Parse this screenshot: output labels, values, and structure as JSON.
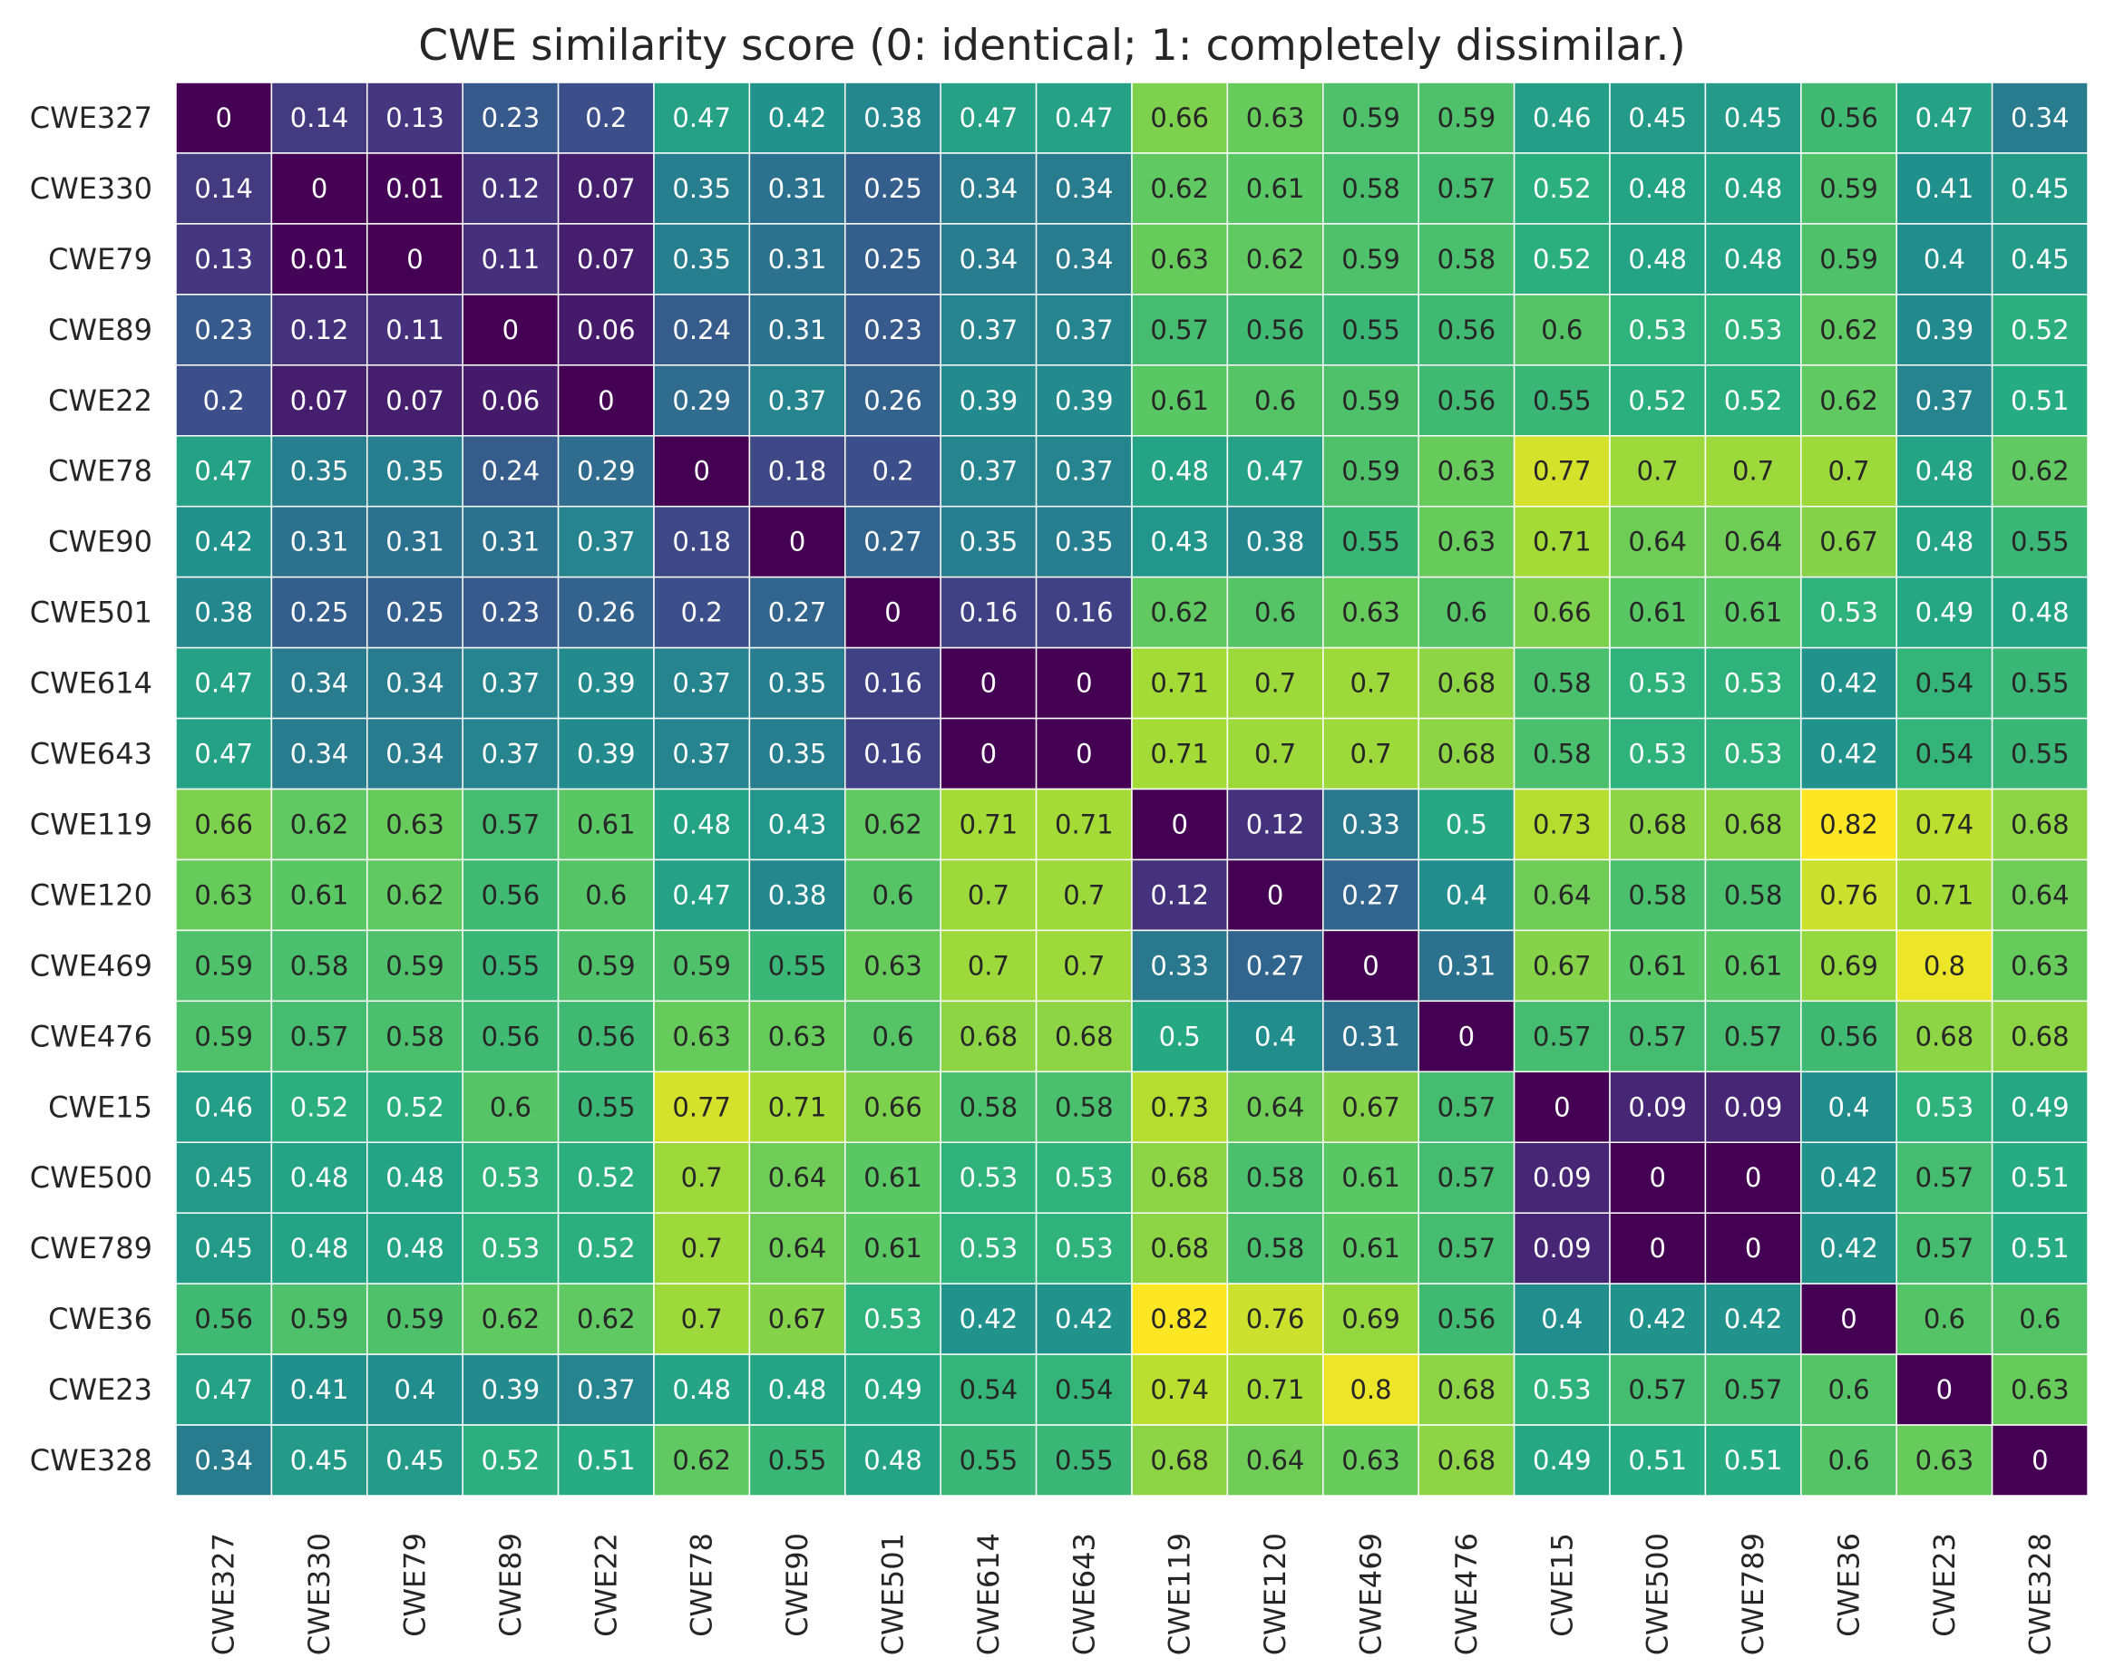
{
  "chart_data": {
    "type": "heatmap",
    "title": "CWE similarity score (0: identical; 1: completely dissimilar.)",
    "xlabel": "",
    "ylabel": "",
    "colormap": "viridis",
    "value_range": [
      0,
      0.82
    ],
    "row_labels": [
      "CWE327",
      "CWE330",
      "CWE79",
      "CWE89",
      "CWE22",
      "CWE78",
      "CWE90",
      "CWE501",
      "CWE614",
      "CWE643",
      "CWE119",
      "CWE120",
      "CWE469",
      "CWE476",
      "CWE15",
      "CWE500",
      "CWE789",
      "CWE36",
      "CWE23",
      "CWE328"
    ],
    "col_labels": [
      "CWE327",
      "CWE330",
      "CWE79",
      "CWE89",
      "CWE22",
      "CWE78",
      "CWE90",
      "CWE501",
      "CWE614",
      "CWE643",
      "CWE119",
      "CWE120",
      "CWE469",
      "CWE476",
      "CWE15",
      "CWE500",
      "CWE789",
      "CWE36",
      "CWE23",
      "CWE328"
    ],
    "values": [
      [
        0,
        0.14,
        0.13,
        0.23,
        0.2,
        0.47,
        0.42,
        0.38,
        0.47,
        0.47,
        0.66,
        0.63,
        0.59,
        0.59,
        0.46,
        0.45,
        0.45,
        0.56,
        0.47,
        0.34
      ],
      [
        0.14,
        0,
        0.01,
        0.12,
        0.07,
        0.35,
        0.31,
        0.25,
        0.34,
        0.34,
        0.62,
        0.61,
        0.58,
        0.57,
        0.52,
        0.48,
        0.48,
        0.59,
        0.41,
        0.45
      ],
      [
        0.13,
        0.01,
        0,
        0.11,
        0.07,
        0.35,
        0.31,
        0.25,
        0.34,
        0.34,
        0.63,
        0.62,
        0.59,
        0.58,
        0.52,
        0.48,
        0.48,
        0.59,
        0.4,
        0.45
      ],
      [
        0.23,
        0.12,
        0.11,
        0,
        0.06,
        0.24,
        0.31,
        0.23,
        0.37,
        0.37,
        0.57,
        0.56,
        0.55,
        0.56,
        0.6,
        0.53,
        0.53,
        0.62,
        0.39,
        0.52
      ],
      [
        0.2,
        0.07,
        0.07,
        0.06,
        0,
        0.29,
        0.37,
        0.26,
        0.39,
        0.39,
        0.61,
        0.6,
        0.59,
        0.56,
        0.55,
        0.52,
        0.52,
        0.62,
        0.37,
        0.51
      ],
      [
        0.47,
        0.35,
        0.35,
        0.24,
        0.29,
        0,
        0.18,
        0.2,
        0.37,
        0.37,
        0.48,
        0.47,
        0.59,
        0.63,
        0.77,
        0.7,
        0.7,
        0.7,
        0.48,
        0.62
      ],
      [
        0.42,
        0.31,
        0.31,
        0.31,
        0.37,
        0.18,
        0,
        0.27,
        0.35,
        0.35,
        0.43,
        0.38,
        0.55,
        0.63,
        0.71,
        0.64,
        0.64,
        0.67,
        0.48,
        0.55
      ],
      [
        0.38,
        0.25,
        0.25,
        0.23,
        0.26,
        0.2,
        0.27,
        0,
        0.16,
        0.16,
        0.62,
        0.6,
        0.63,
        0.6,
        0.66,
        0.61,
        0.61,
        0.53,
        0.49,
        0.48
      ],
      [
        0.47,
        0.34,
        0.34,
        0.37,
        0.39,
        0.37,
        0.35,
        0.16,
        0,
        0,
        0.71,
        0.7,
        0.7,
        0.68,
        0.58,
        0.53,
        0.53,
        0.42,
        0.54,
        0.55
      ],
      [
        0.47,
        0.34,
        0.34,
        0.37,
        0.39,
        0.37,
        0.35,
        0.16,
        0,
        0,
        0.71,
        0.7,
        0.7,
        0.68,
        0.58,
        0.53,
        0.53,
        0.42,
        0.54,
        0.55
      ],
      [
        0.66,
        0.62,
        0.63,
        0.57,
        0.61,
        0.48,
        0.43,
        0.62,
        0.71,
        0.71,
        0,
        0.12,
        0.33,
        0.5,
        0.73,
        0.68,
        0.68,
        0.82,
        0.74,
        0.68
      ],
      [
        0.63,
        0.61,
        0.62,
        0.56,
        0.6,
        0.47,
        0.38,
        0.6,
        0.7,
        0.7,
        0.12,
        0,
        0.27,
        0.4,
        0.64,
        0.58,
        0.58,
        0.76,
        0.71,
        0.64
      ],
      [
        0.59,
        0.58,
        0.59,
        0.55,
        0.59,
        0.59,
        0.55,
        0.63,
        0.7,
        0.7,
        0.33,
        0.27,
        0,
        0.31,
        0.67,
        0.61,
        0.61,
        0.69,
        0.8,
        0.63
      ],
      [
        0.59,
        0.57,
        0.58,
        0.56,
        0.56,
        0.63,
        0.63,
        0.6,
        0.68,
        0.68,
        0.5,
        0.4,
        0.31,
        0,
        0.57,
        0.57,
        0.57,
        0.56,
        0.68,
        0.68
      ],
      [
        0.46,
        0.52,
        0.52,
        0.6,
        0.55,
        0.77,
        0.71,
        0.66,
        0.58,
        0.58,
        0.73,
        0.64,
        0.67,
        0.57,
        0,
        0.09,
        0.09,
        0.4,
        0.53,
        0.49
      ],
      [
        0.45,
        0.48,
        0.48,
        0.53,
        0.52,
        0.7,
        0.64,
        0.61,
        0.53,
        0.53,
        0.68,
        0.58,
        0.61,
        0.57,
        0.09,
        0,
        0,
        0.42,
        0.57,
        0.51
      ],
      [
        0.45,
        0.48,
        0.48,
        0.53,
        0.52,
        0.7,
        0.64,
        0.61,
        0.53,
        0.53,
        0.68,
        0.58,
        0.61,
        0.57,
        0.09,
        0,
        0,
        0.42,
        0.57,
        0.51
      ],
      [
        0.56,
        0.59,
        0.59,
        0.62,
        0.62,
        0.7,
        0.67,
        0.53,
        0.42,
        0.42,
        0.82,
        0.76,
        0.69,
        0.56,
        0.4,
        0.42,
        0.42,
        0,
        0.6,
        0.6
      ],
      [
        0.47,
        0.41,
        0.4,
        0.39,
        0.37,
        0.48,
        0.48,
        0.49,
        0.54,
        0.54,
        0.74,
        0.71,
        0.8,
        0.68,
        0.53,
        0.57,
        0.57,
        0.6,
        0,
        0.63
      ],
      [
        0.34,
        0.45,
        0.45,
        0.52,
        0.51,
        0.62,
        0.55,
        0.48,
        0.55,
        0.55,
        0.68,
        0.64,
        0.63,
        0.68,
        0.49,
        0.51,
        0.51,
        0.6,
        0.63,
        0
      ]
    ]
  }
}
